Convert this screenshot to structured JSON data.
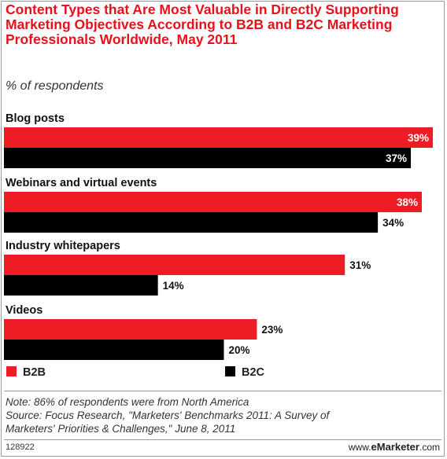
{
  "chart_data": {
    "type": "bar",
    "orientation": "horizontal",
    "title": "Content Types that Are Most Valuable in Directly Supporting Marketing Objectives According to B2B and B2C Marketing Professionals Worldwide, May 2011",
    "subtitle": "% of respondents",
    "categories": [
      "Blog posts",
      "Webinars and virtual events",
      "Industry whitepapers",
      "Videos"
    ],
    "series": [
      {
        "name": "B2B",
        "color": "#ee1c25",
        "values": [
          39,
          38,
          31,
          23
        ]
      },
      {
        "name": "B2C",
        "color": "#000000",
        "values": [
          37,
          34,
          14,
          20
        ]
      }
    ],
    "value_suffix": "%",
    "xlim": [
      0,
      39
    ],
    "grid": false,
    "legend_position": "bottom"
  },
  "notes": {
    "note": "Note: 86% of respondents were from North America",
    "source_lines": [
      "Source: Focus Research, \"Marketers' Benchmarks 2011: A Survey of",
      "Marketers' Priorities & Challenges,\" June 8, 2011"
    ]
  },
  "footer": {
    "id": "128922",
    "brand_prefix": "www.",
    "brand_name": "eMarketer",
    "brand_suffix": ".com"
  }
}
